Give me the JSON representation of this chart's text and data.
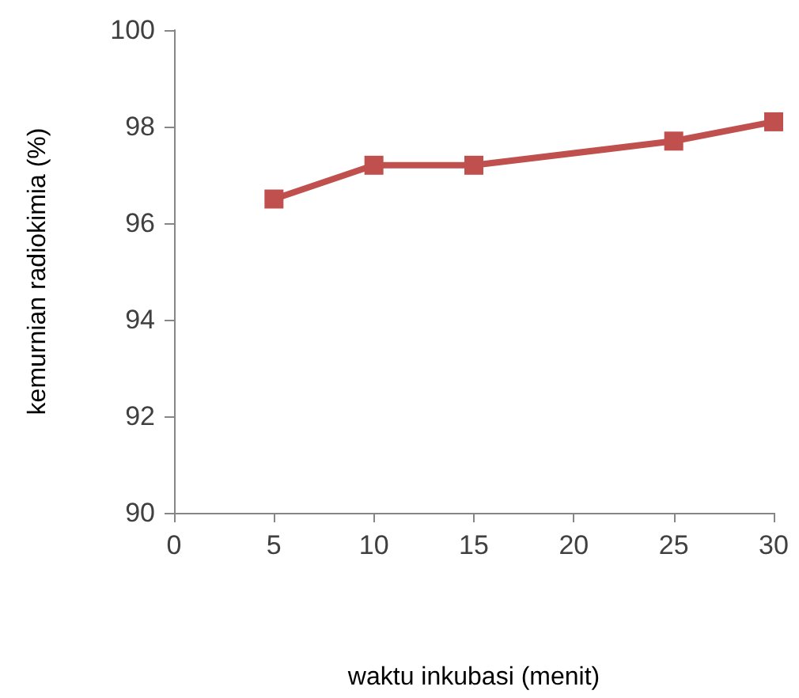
{
  "chart_data": {
    "type": "line",
    "xlabel": "waktu inkubasi (menit)",
    "ylabel": "kemurnian radiokimia (%)",
    "x": [
      5,
      10,
      15,
      25,
      30
    ],
    "series": [
      {
        "color": "#c0504d",
        "values": [
          96.5,
          97.2,
          97.2,
          97.7,
          98.1
        ]
      }
    ],
    "xlim": [
      0,
      30
    ],
    "xticks": [
      0,
      5,
      10,
      15,
      20,
      25,
      30
    ],
    "ylim": [
      90,
      100
    ],
    "yticks": [
      90,
      92,
      94,
      96,
      98,
      100
    ],
    "marker": "square",
    "line_style": "solid"
  }
}
